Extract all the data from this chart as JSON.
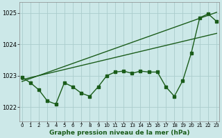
{
  "xlabel": "Graphe pression niveau de la mer (hPa)",
  "bg_color": "#cce8e8",
  "grid_color": "#aacccc",
  "line_color": "#1a5c1a",
  "marker": "s",
  "markersize": 2.5,
  "linewidth": 1.0,
  "ylim": [
    1021.55,
    1025.35
  ],
  "xlim": [
    -0.3,
    23.3
  ],
  "yticks": [
    1022,
    1023,
    1024,
    1025
  ],
  "xticks": [
    0,
    1,
    2,
    3,
    4,
    5,
    6,
    7,
    8,
    9,
    10,
    11,
    12,
    13,
    14,
    15,
    16,
    17,
    18,
    19,
    20,
    21,
    22,
    23
  ],
  "xtick_labels": [
    "0",
    "1",
    "2",
    "3",
    "4",
    "5",
    "6",
    "7",
    "8",
    "9",
    "10",
    "11",
    "12",
    "13",
    "14",
    "15",
    "16",
    "17",
    "18",
    "19",
    "20",
    "21",
    "22",
    "23"
  ],
  "y_main": [
    1022.95,
    1022.78,
    1022.55,
    1022.2,
    1022.1,
    1022.78,
    1022.65,
    1022.45,
    1022.35,
    1022.65,
    1023.0,
    1023.12,
    1023.15,
    1023.08,
    1023.15,
    1023.12,
    1023.12,
    1022.65,
    1022.35,
    1022.85,
    1023.72,
    1024.85,
    1024.97,
    1024.73
  ],
  "trend1_x": [
    0,
    23
  ],
  "trend1_y": [
    1022.88,
    1024.35
  ],
  "trend2_x": [
    0,
    23
  ],
  "trend2_y": [
    1022.82,
    1025.02
  ]
}
